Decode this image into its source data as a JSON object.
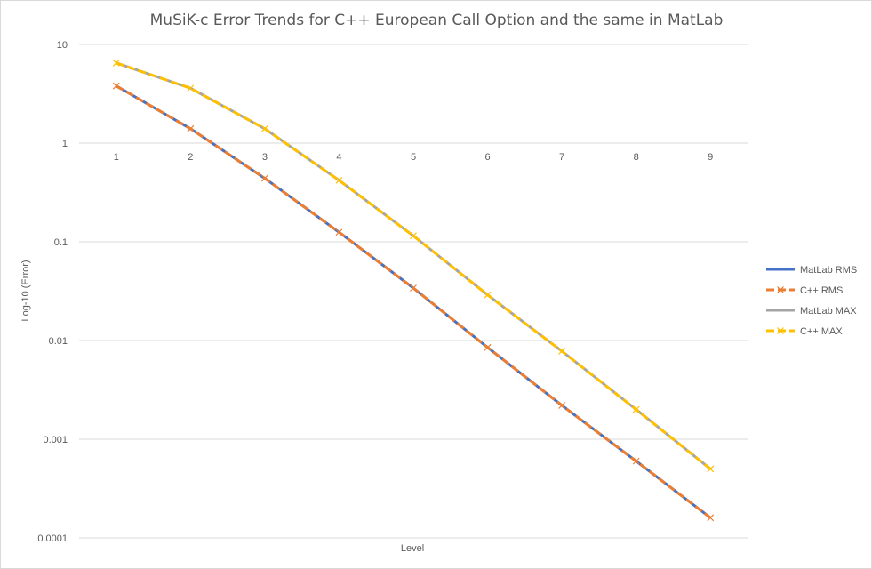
{
  "chart_data": {
    "type": "line",
    "title": "MuSiK-c Error Trends for C++ European Call Option and the same in MatLab",
    "xlabel": "Level",
    "ylabel": "Log-10 (Error)",
    "y_scale": "log10",
    "ylim": [
      0.0001,
      10
    ],
    "y_ticks": [
      "10",
      "1",
      "0.1",
      "0.01",
      "0.001",
      "0.0001"
    ],
    "categories": [
      "1",
      "2",
      "3",
      "4",
      "5",
      "6",
      "7",
      "8",
      "9"
    ],
    "x_axis_crosses_at": 1,
    "grid": true,
    "legend_position": "right",
    "series": [
      {
        "name": "MatLab RMS",
        "color": "#4472C4",
        "dash": false,
        "marker": "none",
        "values": [
          3.8,
          1.4,
          0.44,
          0.125,
          0.034,
          0.0085,
          0.0022,
          0.0006,
          0.00016
        ]
      },
      {
        "name": "C++ RMS",
        "color": "#ED7D31",
        "dash": true,
        "marker": "x",
        "values": [
          3.8,
          1.4,
          0.44,
          0.125,
          0.034,
          0.0085,
          0.0022,
          0.0006,
          0.00016
        ]
      },
      {
        "name": "MatLab MAX",
        "color": "#A5A5A5",
        "dash": false,
        "marker": "none",
        "values": [
          6.5,
          3.6,
          1.4,
          0.42,
          0.115,
          0.029,
          0.0078,
          0.002,
          0.0005
        ]
      },
      {
        "name": "C++ MAX",
        "color": "#FFC000",
        "dash": true,
        "marker": "x",
        "values": [
          6.5,
          3.6,
          1.4,
          0.42,
          0.115,
          0.029,
          0.0078,
          0.002,
          0.0005
        ]
      }
    ]
  }
}
